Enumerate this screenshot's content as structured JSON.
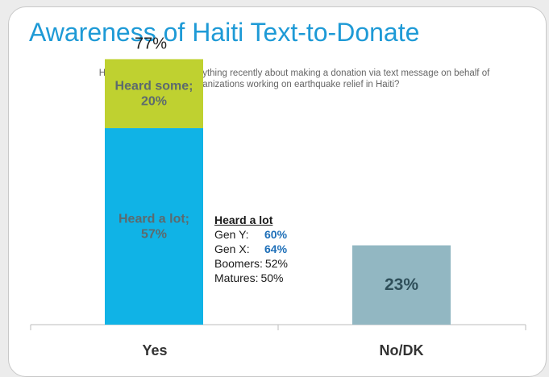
{
  "title": "Awareness of Haiti Text-to-Donate",
  "question": "Have you seen /heard anything recently about making a donation via text message on behalf of organizations working on earthquake relief in Haiti?",
  "colors": {
    "heard_some": "#bfd130",
    "heard_a_lot": "#10b3e6",
    "no_dk": "#92b7c2",
    "title": "#1e9ad6"
  },
  "callout": {
    "heading": "Heard a lot",
    "rows": [
      {
        "label": "Gen Y:",
        "value": "60%",
        "highlight": true
      },
      {
        "label": "Gen X:",
        "value": "64%",
        "highlight": true
      },
      {
        "label": "Boomers:",
        "value": "52%",
        "highlight": false
      },
      {
        "label": "Matures:",
        "value": "50%",
        "highlight": false
      }
    ]
  },
  "chart_data": {
    "type": "bar",
    "stacked": true,
    "title": "Awareness of Haiti Text-to-Donate",
    "xlabel": "",
    "ylabel": "",
    "categories": [
      "Yes",
      "No/DK"
    ],
    "series": [
      {
        "name": "Heard a lot",
        "values": [
          57,
          null
        ],
        "labels": [
          "Heard a lot;",
          "57%"
        ]
      },
      {
        "name": "Heard some",
        "values": [
          20,
          null
        ],
        "labels": [
          "Heard some;",
          "20%"
        ]
      },
      {
        "name": "No/DK",
        "values": [
          null,
          23
        ],
        "labels": [
          "23%"
        ]
      }
    ],
    "totals": [
      "77%",
      ""
    ],
    "ylim": [
      0,
      100
    ],
    "grid": false,
    "legend": "none"
  }
}
